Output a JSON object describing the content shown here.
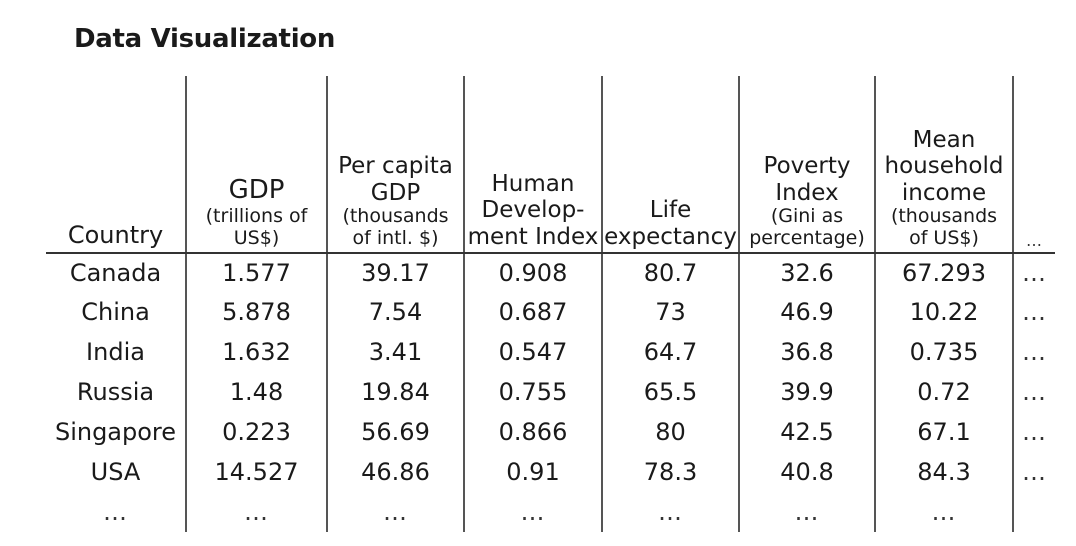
{
  "title": "Data Visualization",
  "headers": {
    "country": "Country",
    "gdp_main": "GDP",
    "gdp_sub": [
      "(trillions of",
      "US$)"
    ],
    "pcgdp_main": [
      "Per capita",
      "GDP"
    ],
    "pcgdp_sub": [
      "(thousands",
      "of intl. $)"
    ],
    "hdi_main": [
      "Human",
      "Develop-",
      "ment Index"
    ],
    "life_main": [
      "Life",
      "expectancy"
    ],
    "poverty_main": [
      "Poverty",
      "Index"
    ],
    "poverty_sub": [
      "(Gini as",
      "percentage)"
    ],
    "income_main": [
      "Mean",
      "household",
      "income"
    ],
    "income_sub": [
      "(thousands",
      "of US$)"
    ],
    "more": "…"
  },
  "rows": [
    {
      "country": "Canada",
      "gdp": "1.577",
      "pcgdp": "39.17",
      "hdi": "0.908",
      "life": "80.7",
      "poverty": "32.6",
      "income": "67.293",
      "more": "…"
    },
    {
      "country": "China",
      "gdp": "5.878",
      "pcgdp": "7.54",
      "hdi": "0.687",
      "life": "73",
      "poverty": "46.9",
      "income": "10.22",
      "more": "…"
    },
    {
      "country": "India",
      "gdp": "1.632",
      "pcgdp": "3.41",
      "hdi": "0.547",
      "life": "64.7",
      "poverty": "36.8",
      "income": "0.735",
      "more": "…"
    },
    {
      "country": "Russia",
      "gdp": "1.48",
      "pcgdp": "19.84",
      "hdi": "0.755",
      "life": "65.5",
      "poverty": "39.9",
      "income": "0.72",
      "more": "…"
    },
    {
      "country": "Singapore",
      "gdp": "0.223",
      "pcgdp": "56.69",
      "hdi": "0.866",
      "life": "80",
      "poverty": "42.5",
      "income": "67.1",
      "more": "…"
    },
    {
      "country": "USA",
      "gdp": "14.527",
      "pcgdp": "46.86",
      "hdi": "0.91",
      "life": "78.3",
      "poverty": "40.8",
      "income": "84.3",
      "more": "…"
    }
  ],
  "ellipsis_row": {
    "country": "…",
    "gdp": "…",
    "pcgdp": "…",
    "hdi": "…",
    "life": "…",
    "poverty": "…",
    "income": "…",
    "more": ""
  }
}
